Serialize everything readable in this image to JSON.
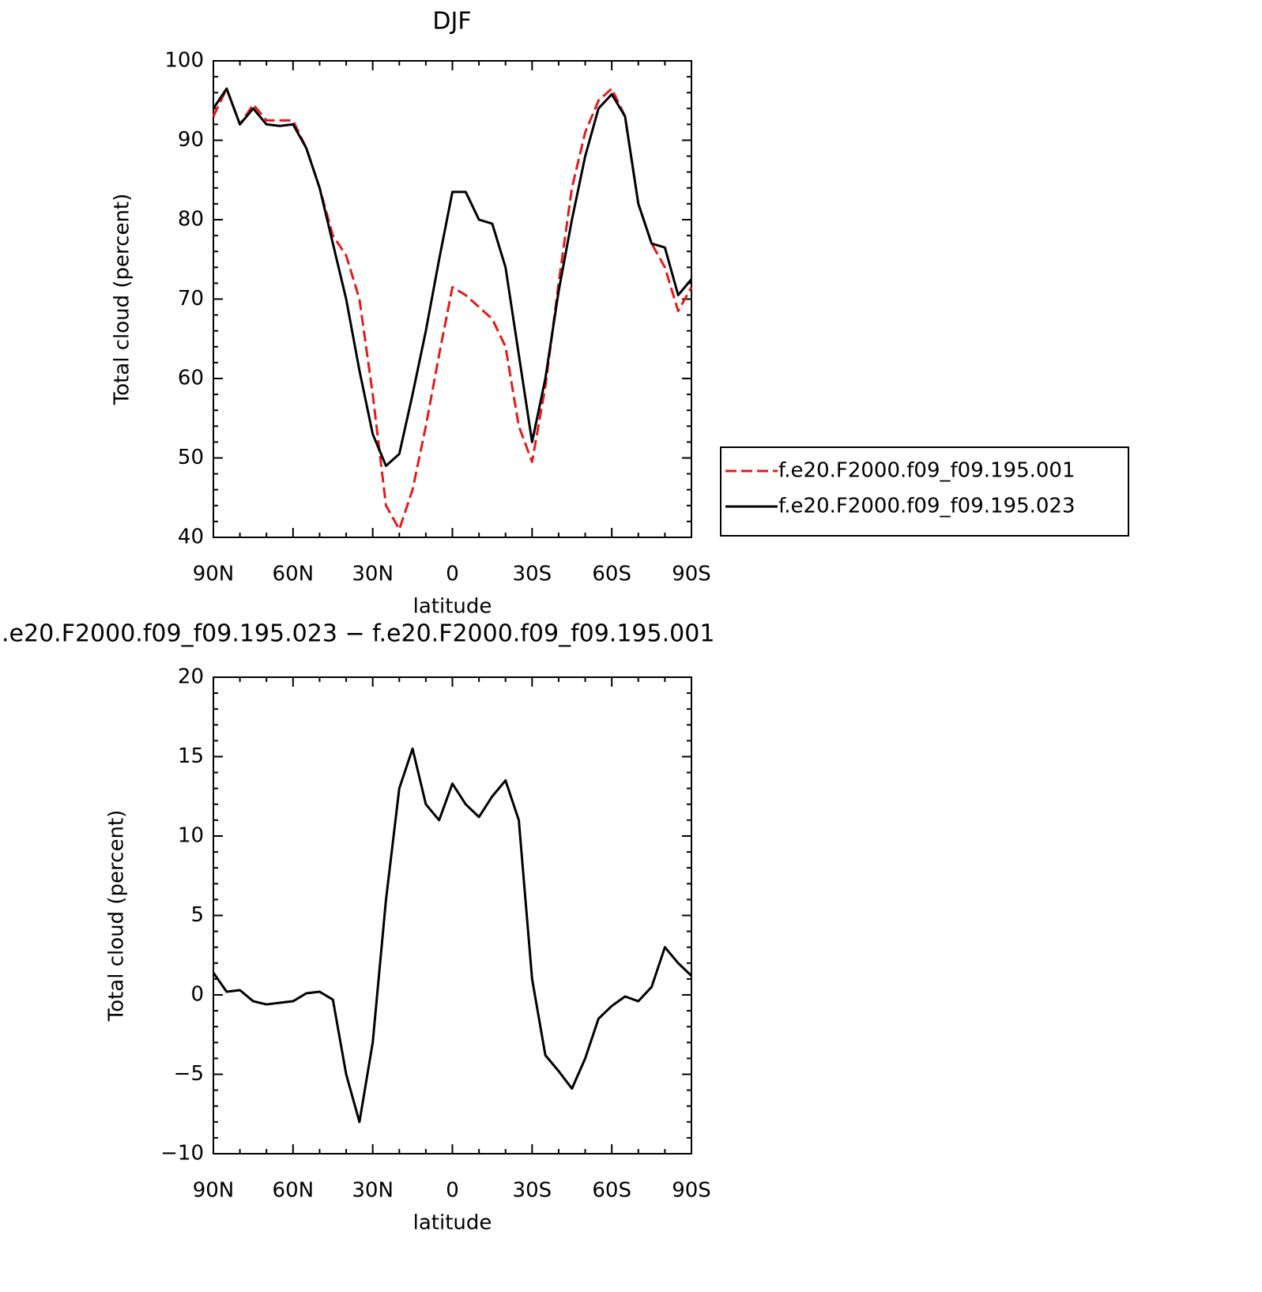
{
  "chart_data": [
    {
      "type": "line",
      "title": "DJF",
      "xlabel": "latitude",
      "ylabel": "Total cloud (percent)",
      "x": [
        90,
        85,
        80,
        75,
        70,
        65,
        60,
        55,
        50,
        45,
        40,
        35,
        30,
        25,
        20,
        15,
        10,
        5,
        0,
        -5,
        -10,
        -15,
        -20,
        -25,
        -30,
        -35,
        -40,
        -45,
        -50,
        -55,
        -60,
        -65,
        -70,
        -75,
        -80,
        -85,
        -90
      ],
      "series": [
        {
          "name": "f.e20.F2000.f09_f09.195.001",
          "color": "#e41a1c",
          "dashed": true,
          "values": [
            93,
            96.5,
            92,
            94.5,
            92.5,
            92.5,
            92.5,
            89,
            84,
            78,
            75.5,
            70,
            58,
            44,
            41,
            46,
            54,
            63,
            71.5,
            70.5,
            69,
            67.5,
            64,
            54,
            49.5,
            59,
            72,
            84,
            91,
            95,
            96.5,
            93,
            82,
            77,
            74,
            68.5,
            71.5
          ]
        },
        {
          "name": "f.e20.F2000.f09_f09.195.023",
          "color": "#000000",
          "dashed": false,
          "values": [
            94,
            96.5,
            92,
            94,
            92,
            91.8,
            92,
            89,
            84,
            77,
            70,
            61,
            53,
            49,
            50.5,
            58,
            66,
            75,
            83.5,
            83.5,
            80,
            79.5,
            74,
            63,
            52,
            60,
            71,
            80,
            88,
            94,
            95.8,
            93,
            82,
            77,
            76.5,
            70.5,
            72.5
          ]
        }
      ],
      "xlim": [
        90,
        -90
      ],
      "xticks": [
        {
          "value": 90,
          "label": "90N"
        },
        {
          "value": 60,
          "label": "60N"
        },
        {
          "value": 30,
          "label": "30N"
        },
        0,
        {
          "value": -30,
          "label": "30S"
        },
        {
          "value": -60,
          "label": "60S"
        },
        {
          "value": -90,
          "label": "90S"
        }
      ],
      "ylim": [
        40,
        100
      ],
      "yticks": [
        40,
        50,
        60,
        70,
        80,
        90,
        100
      ],
      "legend": "right"
    },
    {
      "type": "line",
      "title": ".e20.F2000.f09_f09.195.023 − f.e20.F2000.f09_f09.195.001",
      "xlabel": "latitude",
      "ylabel": "Total cloud (percent)",
      "x": [
        90,
        85,
        80,
        75,
        70,
        65,
        60,
        55,
        50,
        45,
        40,
        35,
        30,
        25,
        20,
        15,
        10,
        5,
        0,
        -5,
        -10,
        -15,
        -20,
        -25,
        -30,
        -35,
        -40,
        -45,
        -50,
        -55,
        -60,
        -65,
        -70,
        -75,
        -80,
        -85,
        -90
      ],
      "series": [
        {
          "color": "#000000",
          "dashed": false,
          "values": [
            1.4,
            0.2,
            0.3,
            -0.4,
            -0.6,
            -0.5,
            -0.4,
            0.1,
            0.2,
            -0.3,
            -5,
            -8,
            -3,
            6,
            13,
            15.5,
            12,
            11,
            13.3,
            12,
            11.2,
            12.5,
            13.5,
            11,
            1,
            -3.8,
            -4.8,
            -5.9,
            -4,
            -1.5,
            -0.7,
            -0.1,
            -0.4,
            0.5,
            3,
            2,
            1.2
          ]
        }
      ],
      "xlim": [
        90,
        -90
      ],
      "xticks": [
        {
          "value": 90,
          "label": "90N"
        },
        {
          "value": 60,
          "label": "60N"
        },
        {
          "value": 30,
          "label": "30N"
        },
        0,
        {
          "value": -30,
          "label": "30S"
        },
        {
          "value": -60,
          "label": "60S"
        },
        {
          "value": -90,
          "label": "90S"
        }
      ],
      "ylim": [
        -10,
        20
      ],
      "yticks": [
        {
          "value": -10,
          "label": "−10"
        },
        {
          "value": -5,
          "label": "−5"
        },
        0,
        5,
        10,
        15,
        20
      ]
    }
  ]
}
